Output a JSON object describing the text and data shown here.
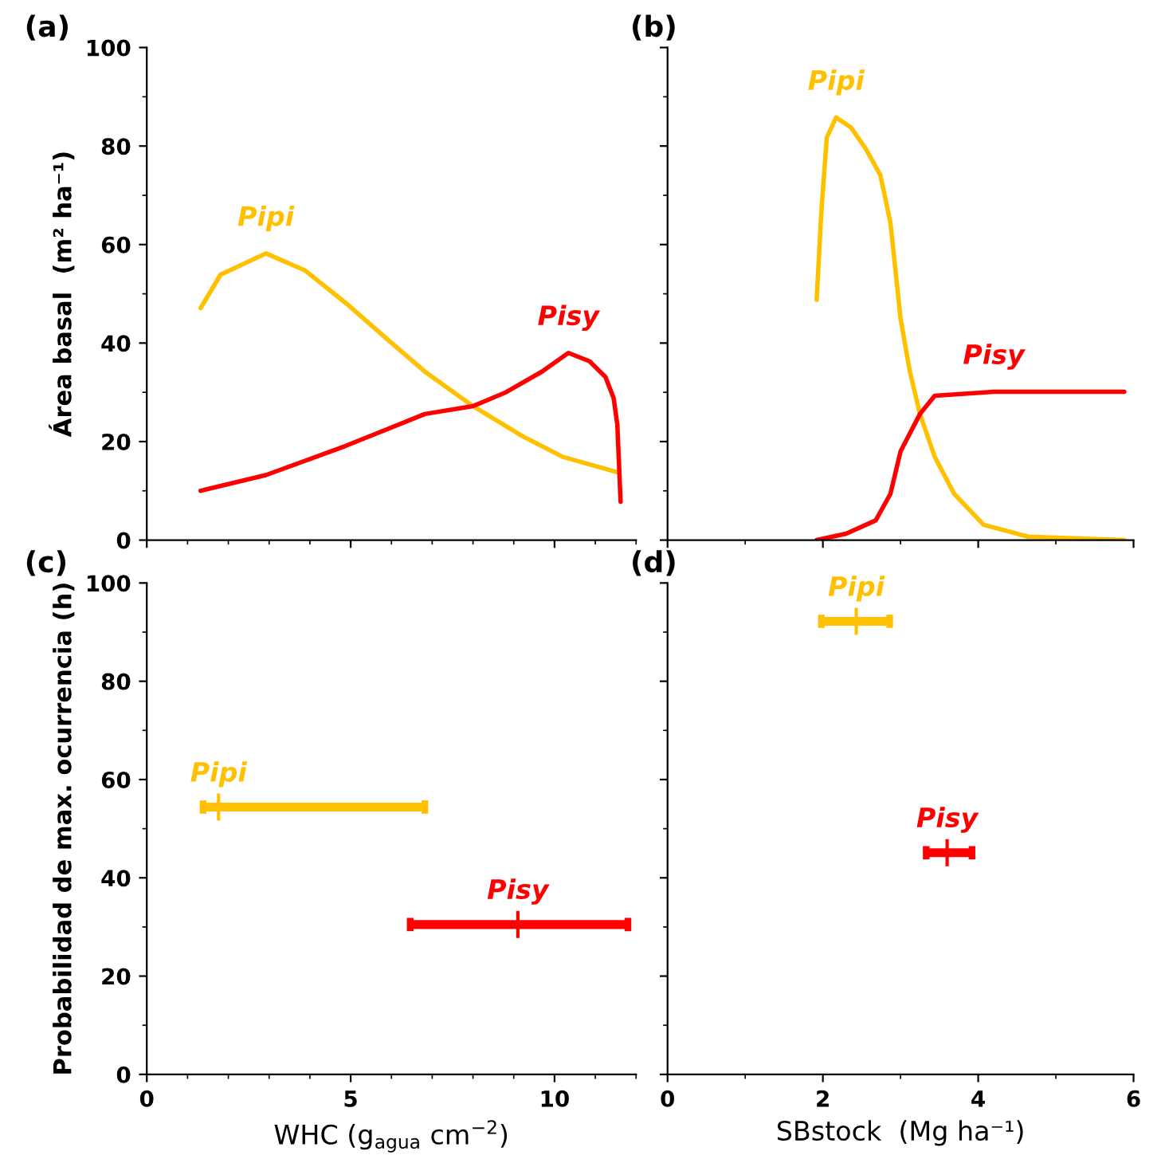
{
  "chart_data": [
    {
      "type": "line",
      "title": "(a)",
      "ylabel": "Área basal  (m² ha⁻¹)",
      "xlim": [
        0,
        12
      ],
      "xticks": [
        0,
        5,
        10
      ],
      "ylim": [
        0,
        100
      ],
      "yticks": [
        0,
        20,
        40,
        60,
        80,
        100
      ],
      "tick_labels": "y",
      "grid": false,
      "legend": false,
      "series": [
        {
          "name": "Pipi",
          "color": "#ffc000",
          "x": [
            1.32,
            1.81,
            2.92,
            3.89,
            4.87,
            5.91,
            6.82,
            8.0,
            9.17,
            10.2,
            11.57
          ],
          "values": [
            47.1,
            53.9,
            58.2,
            54.7,
            48.2,
            40.7,
            34.2,
            27.2,
            21.3,
            16.9,
            13.7
          ]
        },
        {
          "name": "Pisy",
          "color": "#ff0000",
          "x": [
            1.32,
            2.92,
            4.87,
            6.82,
            8.0,
            8.78,
            9.69,
            10.34,
            10.86,
            11.25,
            11.45,
            11.54,
            11.62
          ],
          "values": [
            10.0,
            13.2,
            19.1,
            25.6,
            27.2,
            29.9,
            34.2,
            38.0,
            36.3,
            33.1,
            28.8,
            23.4,
            7.8
          ]
        }
      ]
    },
    {
      "type": "line",
      "title": "(b)",
      "xlim": [
        0,
        6
      ],
      "xticks": [
        0,
        2,
        4,
        6
      ],
      "ylim": [
        0,
        100
      ],
      "yticks": [
        0,
        20,
        40,
        60,
        80,
        100
      ],
      "tick_labels": false,
      "grid": false,
      "legend": false,
      "series": [
        {
          "name": "Pipi",
          "color": "#ffc000",
          "x": [
            1.92,
            1.98,
            2.05,
            2.17,
            2.36,
            2.55,
            2.74,
            2.87,
            3.0,
            3.12,
            3.25,
            3.44,
            3.69,
            4.07,
            4.64,
            5.88
          ],
          "values": [
            48.8,
            66.6,
            81.7,
            85.8,
            83.8,
            79.5,
            74.1,
            64.4,
            45.0,
            34.2,
            25.6,
            16.9,
            9.4,
            3.1,
            0.7,
            0
          ]
        },
        {
          "name": "Pisy",
          "color": "#ff0000",
          "x": [
            1.92,
            2.3,
            2.68,
            2.87,
            3.0,
            3.25,
            3.44,
            4.2,
            5.88
          ],
          "values": [
            0,
            1.3,
            4.0,
            9.4,
            18.0,
            25.6,
            29.3,
            30.1,
            30.1
          ]
        }
      ]
    },
    {
      "type": "scatter",
      "title": "(c)",
      "xlabel": "WHC (g$_{agua}$ cm$^{−2}$)",
      "ylabel": "Probabilidad de max. ocurrencia (h)",
      "xlim": [
        0,
        12
      ],
      "xticks": [
        0,
        5,
        10
      ],
      "ylim": [
        0,
        100
      ],
      "yticks": [
        0,
        20,
        40,
        60,
        80,
        100
      ],
      "grid": false,
      "legend": false,
      "marker": "cross",
      "series": [
        {
          "name": "Pipi",
          "color": "#ffc000",
          "x": [
            1.76
          ],
          "values": [
            54.4
          ],
          "xerrors": [
            [
              1.38,
              6.82
            ]
          ]
        },
        {
          "name": "Pisy",
          "color": "#ff0000",
          "x": [
            9.1
          ],
          "values": [
            30.5
          ],
          "xerrors": [
            [
              6.46,
              11.8
            ]
          ]
        }
      ]
    },
    {
      "type": "scatter",
      "title": "(d)",
      "xlabel": "SBstock  (Mg ha⁻¹)",
      "xlim": [
        0,
        6
      ],
      "xticks": [
        0,
        2,
        4,
        6
      ],
      "ylim": [
        0,
        100
      ],
      "yticks": [
        0,
        20,
        40,
        60,
        80,
        100
      ],
      "tick_labels": "x",
      "grid": false,
      "legend": false,
      "marker": "cross",
      "series": [
        {
          "name": "Pipi",
          "color": "#ffc000",
          "x": [
            2.43
          ],
          "values": [
            92.2
          ],
          "xerrors": [
            [
              1.98,
              2.86
            ]
          ]
        },
        {
          "name": "Pisy",
          "color": "#ff0000",
          "x": [
            3.6
          ],
          "values": [
            45.1
          ],
          "xerrors": [
            [
              3.33,
              3.92
            ]
          ]
        }
      ]
    }
  ]
}
